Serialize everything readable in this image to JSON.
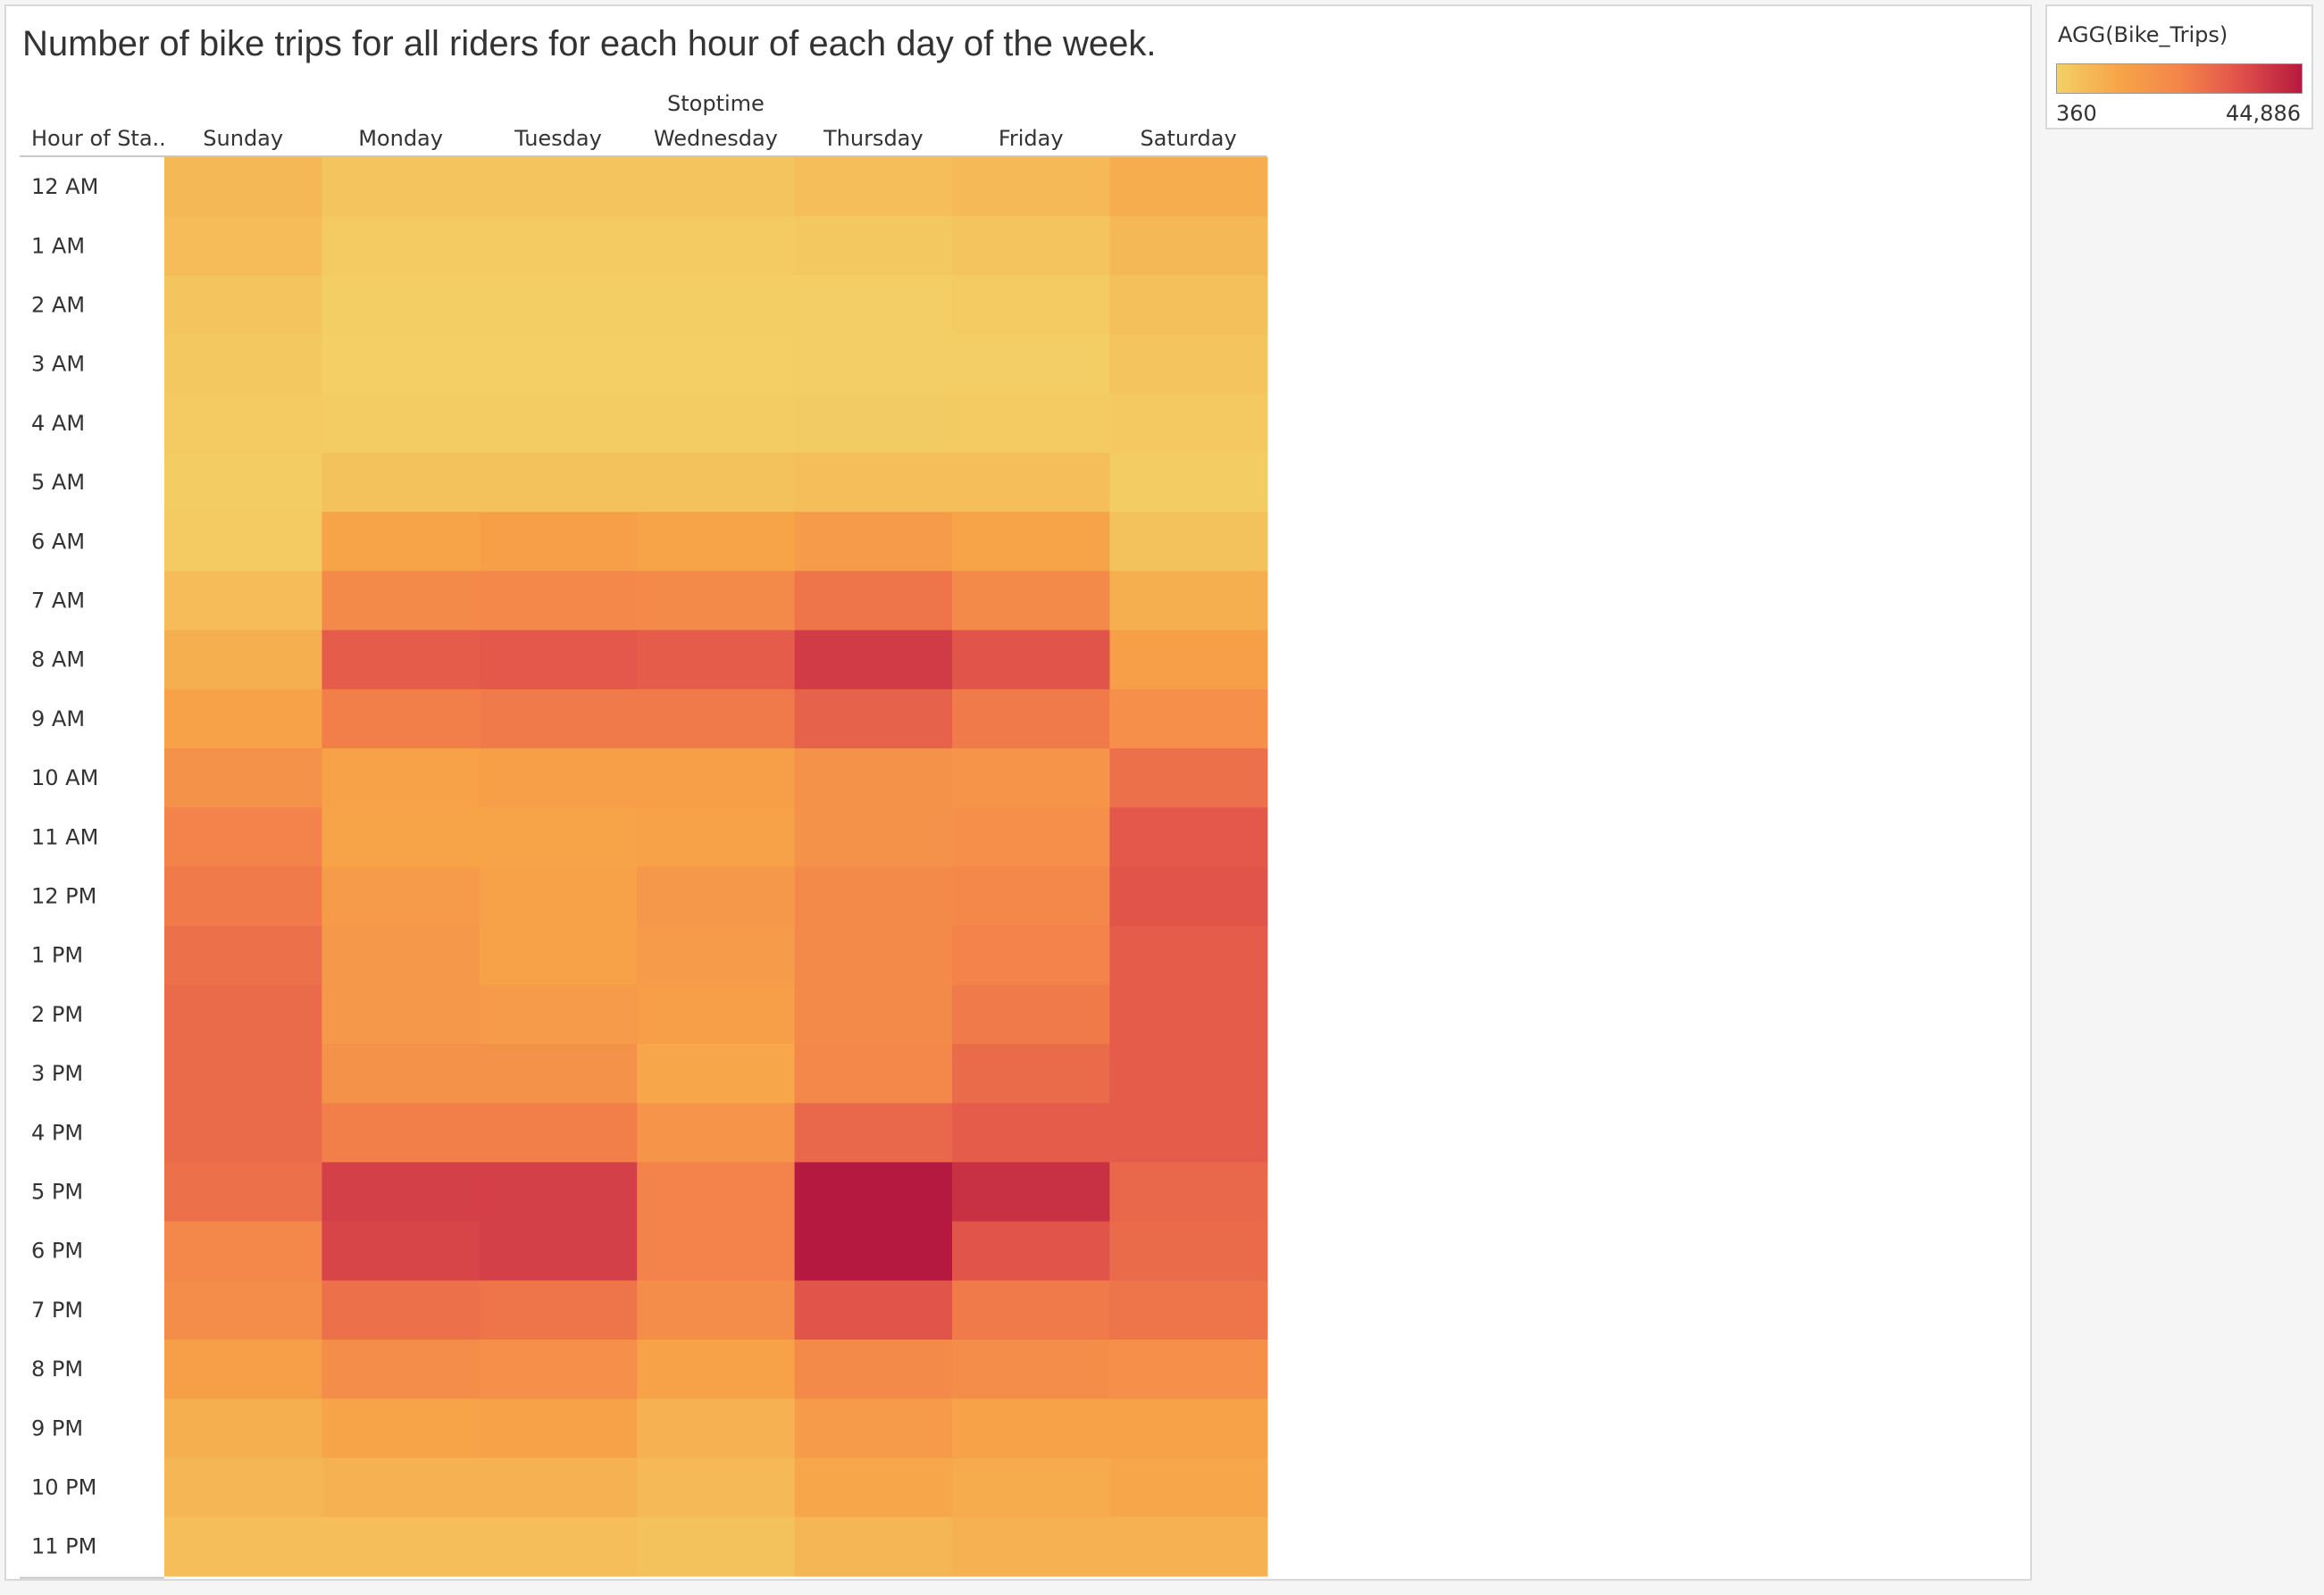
{
  "chart_data": {
    "type": "heatmap",
    "title": "Number of bike trips for all riders for each hour of each day of the week.",
    "column_group_label": "Stoptime",
    "row_header_label": "Hour of Sta..",
    "x": [
      "Sunday",
      "Monday",
      "Tuesday",
      "Wednesday",
      "Thursday",
      "Friday",
      "Saturday"
    ],
    "y": [
      "12 AM",
      "1 AM",
      "2 AM",
      "3 AM",
      "4 AM",
      "5 AM",
      "6 AM",
      "7 AM",
      "8 AM",
      "9 AM",
      "10 AM",
      "11 AM",
      "12 PM",
      "1 PM",
      "2 PM",
      "3 PM",
      "4 PM",
      "5 PM",
      "6 PM",
      "7 PM",
      "8 PM",
      "9 PM",
      "10 PM",
      "11 PM"
    ],
    "values": [
      [
        6500,
        3500,
        3200,
        3500,
        5000,
        6000,
        9500
      ],
      [
        5500,
        2000,
        1800,
        2000,
        2500,
        3200,
        6500
      ],
      [
        3500,
        1000,
        900,
        1000,
        1200,
        1800,
        4500
      ],
      [
        2500,
        700,
        700,
        700,
        800,
        1200,
        3500
      ],
      [
        1800,
        1500,
        1500,
        1500,
        1600,
        1800,
        2200
      ],
      [
        1500,
        4000,
        4000,
        4000,
        5000,
        5000,
        1500
      ],
      [
        2000,
        12000,
        14000,
        12000,
        15000,
        12000,
        4000
      ],
      [
        5500,
        21000,
        22000,
        21000,
        26000,
        21000,
        9000
      ],
      [
        9000,
        31000,
        32000,
        31000,
        38000,
        33000,
        14000
      ],
      [
        13000,
        24000,
        25000,
        25000,
        30000,
        25000,
        19000
      ],
      [
        18000,
        13000,
        14000,
        14000,
        18000,
        17000,
        27000
      ],
      [
        23000,
        12000,
        12000,
        13000,
        18000,
        19000,
        32000
      ],
      [
        25000,
        15000,
        13000,
        16000,
        21000,
        22000,
        33000
      ],
      [
        27000,
        16000,
        13000,
        15000,
        21000,
        23000,
        31000
      ],
      [
        28000,
        16000,
        15000,
        14000,
        21000,
        25000,
        31000
      ],
      [
        28000,
        18000,
        18000,
        11000,
        22000,
        28000,
        31000
      ],
      [
        28000,
        24000,
        24000,
        17000,
        29000,
        31000,
        31000
      ],
      [
        27000,
        37000,
        37000,
        23000,
        44886,
        40000,
        29000
      ],
      [
        22000,
        36000,
        37000,
        23000,
        44886,
        33000,
        28000
      ],
      [
        20000,
        27000,
        26000,
        20000,
        33000,
        25000,
        26000
      ],
      [
        14000,
        20000,
        19000,
        13000,
        21000,
        20000,
        19000
      ],
      [
        9000,
        12000,
        13000,
        8000,
        15000,
        13000,
        13000
      ],
      [
        7000,
        8000,
        8000,
        6000,
        11000,
        10000,
        11000
      ],
      [
        5000,
        5000,
        5000,
        4000,
        7000,
        8000,
        8000
      ]
    ],
    "colorscale": {
      "min": 360,
      "max": 44886,
      "stops": [
        "#f3d067",
        "#f7a548",
        "#f4854a",
        "#e0504a",
        "#b6193f"
      ]
    },
    "legend": {
      "title": "AGG(Bike_Trips)",
      "min_label": "360",
      "max_label": "44,886",
      "position": "top-right"
    },
    "grid": false
  }
}
